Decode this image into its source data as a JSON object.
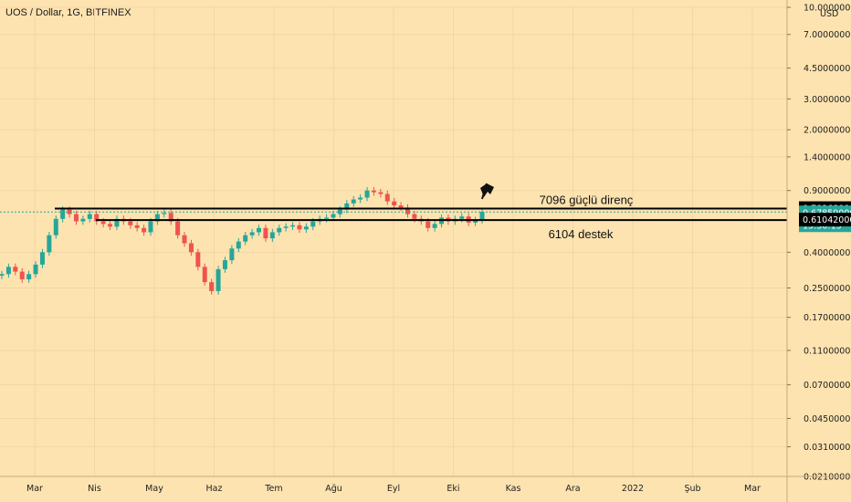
{
  "header": {
    "title": "UOS / Dollar, 1G, BITFINEX"
  },
  "price_axis": {
    "currency": "USD",
    "ticks": [
      "10.00000000",
      "7.00000000",
      "4.50000000",
      "3.00000000",
      "2.00000000",
      "1.40000000",
      "0.90000000",
      "0.40000000",
      "0.25000000",
      "0.17000000",
      "0.11000000",
      "0.07000000",
      "0.04500000",
      "0.03100000",
      "0.02100000"
    ],
    "badges": [
      {
        "label": "0.70968000",
        "bg": "#000000"
      },
      {
        "label": "0.67859000",
        "bg": "#26a69a"
      },
      {
        "label": "15:30:13",
        "bg": "#26a69a"
      },
      {
        "label": "0.61042000",
        "bg": "#000000"
      }
    ]
  },
  "time_axis": {
    "labels": [
      "Mar",
      "Nis",
      "May",
      "Haz",
      "Tem",
      "Ağu",
      "Eyl",
      "Eki",
      "Kas",
      "Ara",
      "2022",
      "Şub",
      "Mar"
    ]
  },
  "annotations": {
    "resistance": {
      "text": "7096 güçlü direnç",
      "price": 0.7096
    },
    "support": {
      "text": "6104 destek",
      "price": 0.6104
    }
  },
  "colors": {
    "bull": "#26a69a",
    "bear": "#ef5350",
    "background": "#fde3b0",
    "grid": "#f3d6a3"
  },
  "chart_data": {
    "type": "candlestick",
    "series": [
      {
        "name": "UOS / Dollar",
        "close": [
          0.3,
          0.33,
          0.31,
          0.28,
          0.3,
          0.34,
          0.4,
          0.5,
          0.62,
          0.7,
          0.66,
          0.6,
          0.62,
          0.66,
          0.6,
          0.58,
          0.56,
          0.62,
          0.6,
          0.57,
          0.55,
          0.52,
          0.6,
          0.66,
          0.67,
          0.6,
          0.5,
          0.45,
          0.4,
          0.33,
          0.27,
          0.24,
          0.32,
          0.36,
          0.42,
          0.46,
          0.5,
          0.52,
          0.55,
          0.48,
          0.52,
          0.55,
          0.56,
          0.57,
          0.54,
          0.56,
          0.6,
          0.62,
          0.63,
          0.66,
          0.7,
          0.76,
          0.8,
          0.82,
          0.9,
          0.88,
          0.86,
          0.78,
          0.74,
          0.72,
          0.66,
          0.62,
          0.6,
          0.55,
          0.58,
          0.63,
          0.6,
          0.62,
          0.64,
          0.59,
          0.61,
          0.68
        ]
      }
    ],
    "levels": [
      0.7096,
      0.6104
    ],
    "last_price": 0.67859,
    "scale": "log"
  }
}
